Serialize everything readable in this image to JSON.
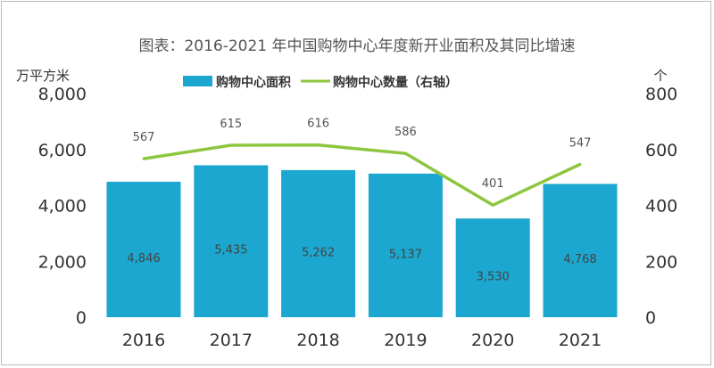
{
  "chart_data": {
    "type": "bar+line",
    "title": "图表：2016-2021 年中国购物中心年度新开业面积及其同比增速",
    "categories": [
      "2016",
      "2017",
      "2018",
      "2019",
      "2020",
      "2021"
    ],
    "left_axis": {
      "unit": "万平方米",
      "range": [
        0,
        8000
      ],
      "ticks": [
        "0",
        "2,000",
        "4,000",
        "6,000",
        "8,000"
      ]
    },
    "right_axis": {
      "unit": "个",
      "range": [
        0,
        800
      ],
      "ticks": [
        "0",
        "200",
        "400",
        "600",
        "800"
      ]
    },
    "series": [
      {
        "name": "购物中心面积",
        "type": "bar",
        "axis": "left",
        "color": "#1ba7cf",
        "values": [
          4846,
          5435,
          5262,
          5137,
          3530,
          4768
        ],
        "labels": [
          "4,846",
          "5,435",
          "5,262",
          "5,137",
          "3,530",
          "4,768"
        ]
      },
      {
        "name": "购物中心数量（右轴）",
        "type": "line",
        "axis": "right",
        "color": "#8dc63f",
        "values": [
          567,
          615,
          616,
          586,
          401,
          547
        ],
        "labels": [
          "567",
          "615",
          "616",
          "586",
          "401",
          "547"
        ]
      }
    ],
    "legend": "top-center",
    "grid": false
  }
}
